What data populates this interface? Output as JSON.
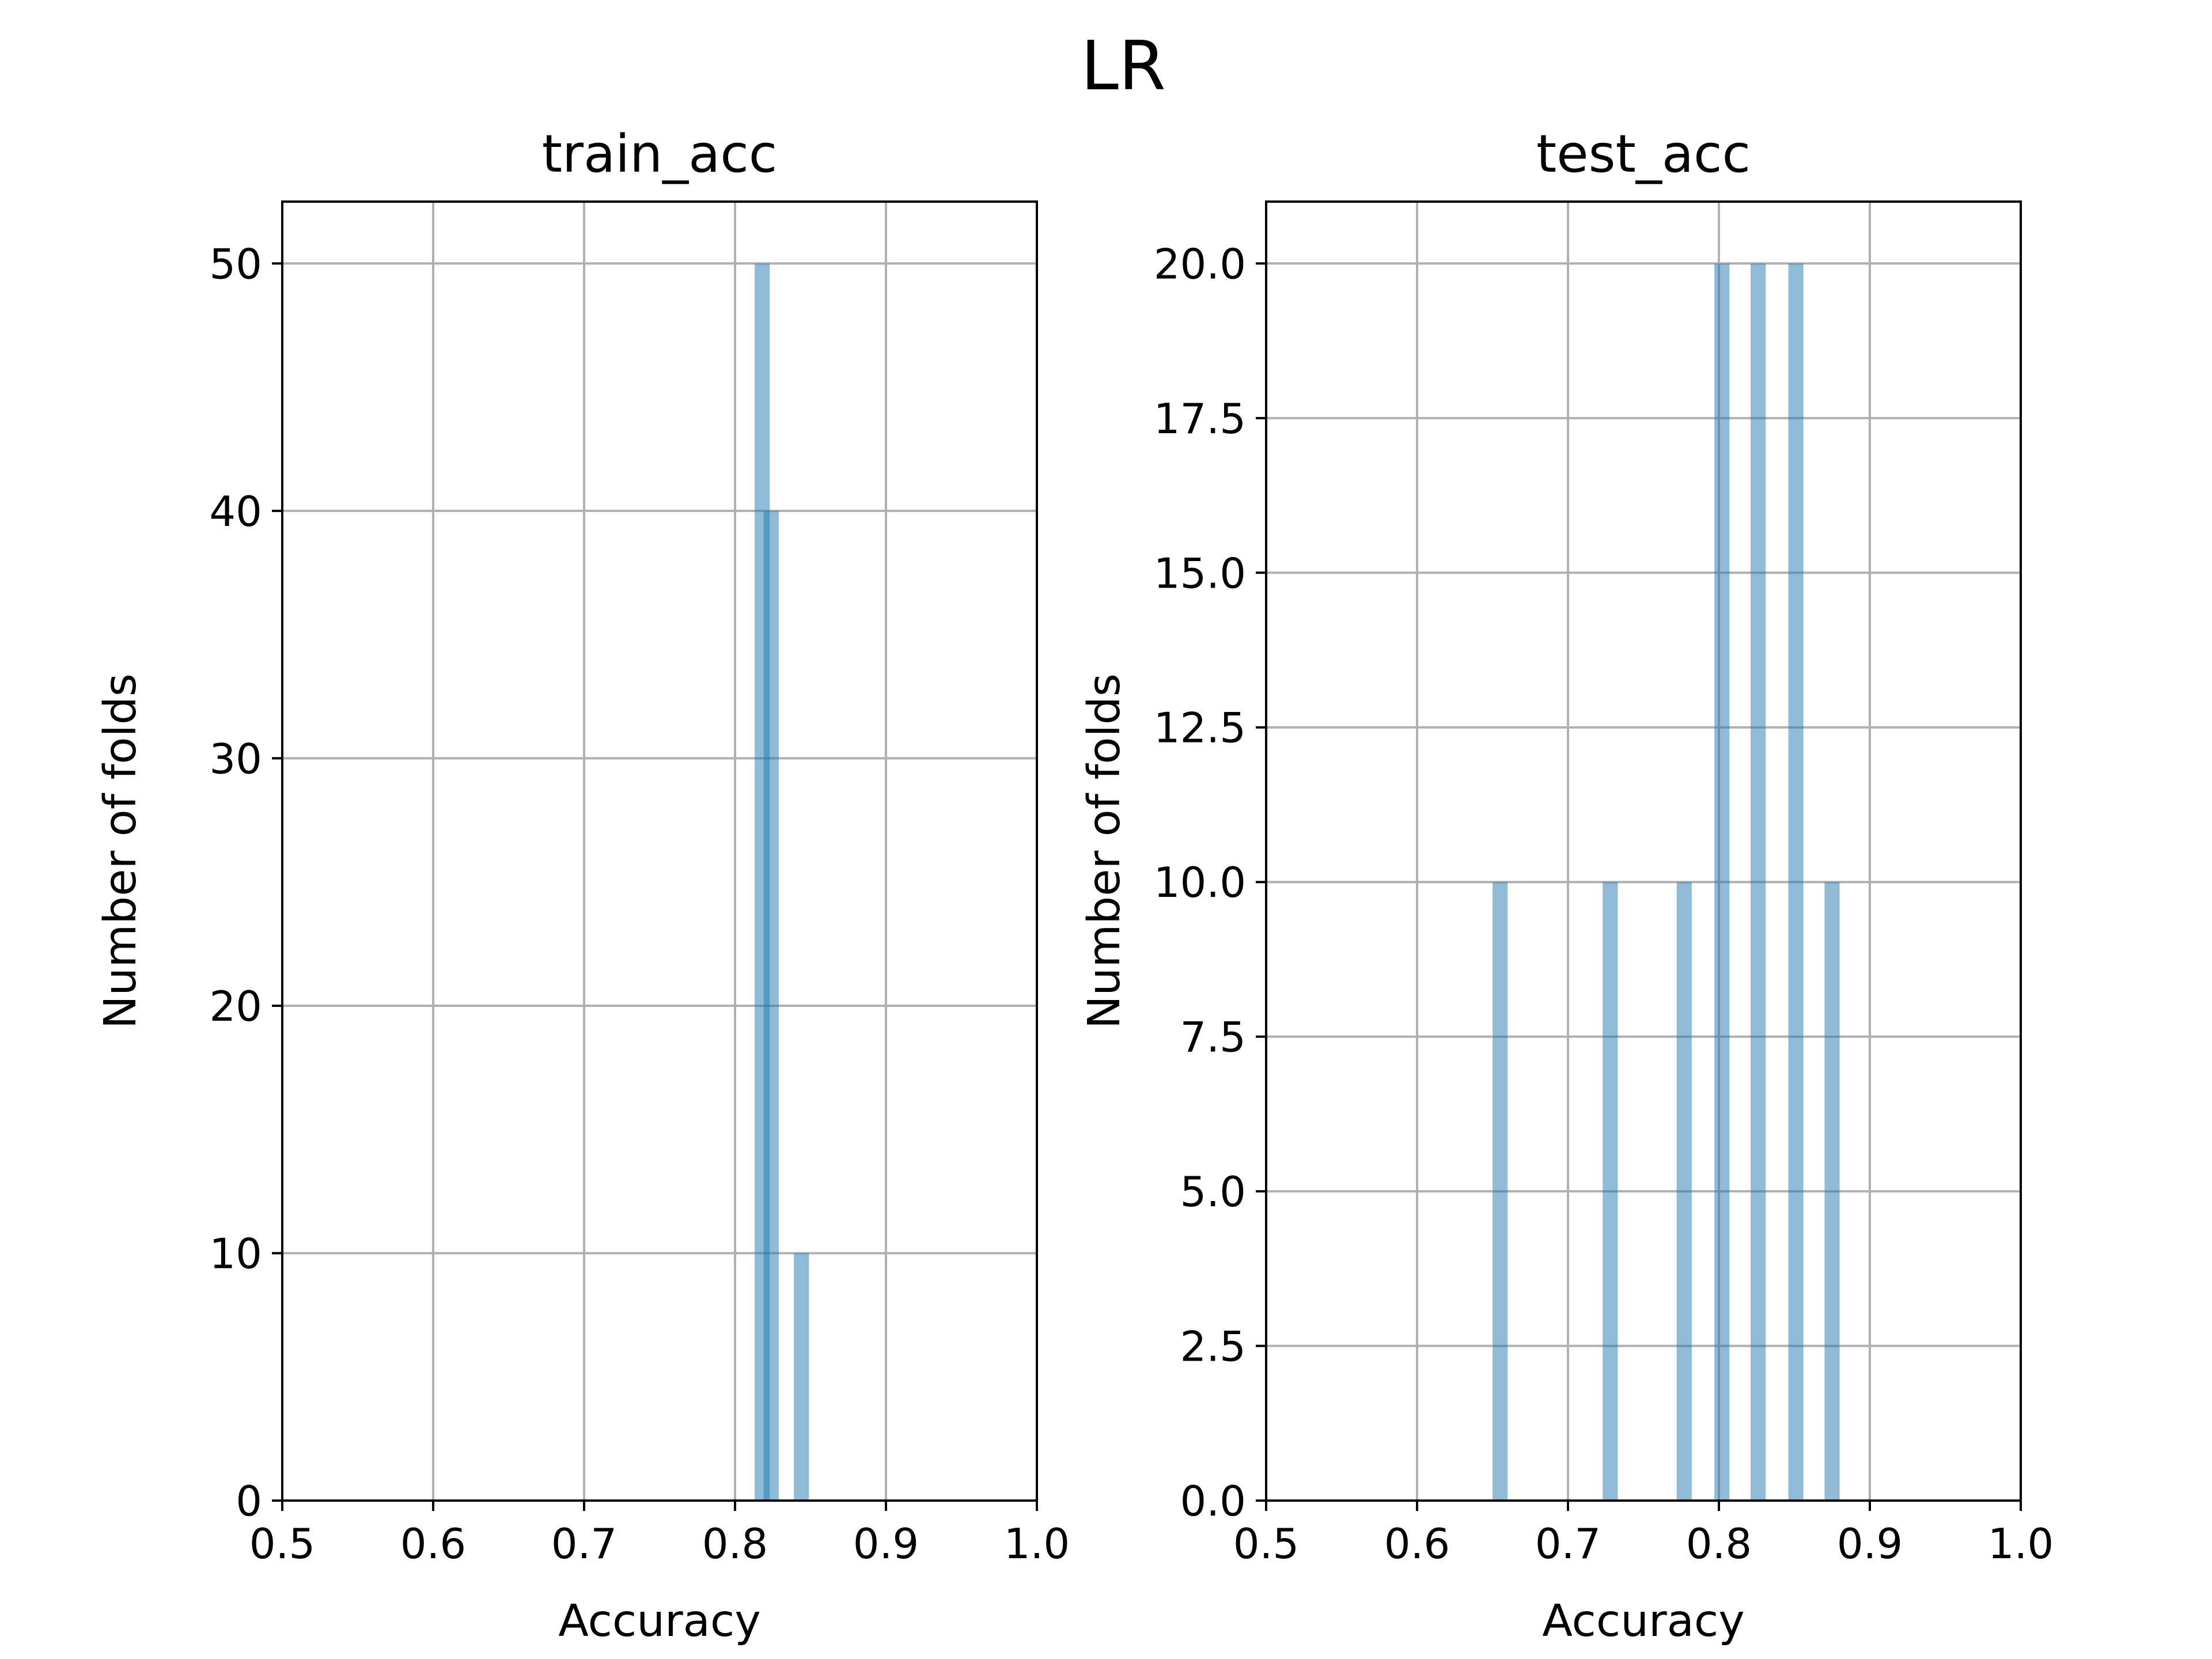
{
  "figure": {
    "title": "LR"
  },
  "colors": {
    "bar": "#1f77b4",
    "bar_alpha": 0.5,
    "grid": "#b0b0b0",
    "axes": "#000000"
  },
  "chart_data": [
    {
      "type": "bar",
      "title": "train_acc",
      "xlabel": "Accuracy",
      "ylabel": "Number of folds",
      "xlim": [
        0.5,
        1.0
      ],
      "ylim": [
        0,
        52.5
      ],
      "xticks": [
        "0.5",
        "0.6",
        "0.7",
        "0.8",
        "0.9",
        "1.0"
      ],
      "yticks": [
        "0",
        "10",
        "20",
        "30",
        "40",
        "50"
      ],
      "grid": true,
      "bin_width": 0.01,
      "series": [
        {
          "x": [
            0.818,
            0.824,
            0.844
          ],
          "values": [
            50,
            40,
            10
          ]
        }
      ]
    },
    {
      "type": "bar",
      "title": "test_acc",
      "xlabel": "Accuracy",
      "ylabel": "Number of folds",
      "xlim": [
        0.5,
        1.0
      ],
      "ylim": [
        0,
        21
      ],
      "xticks": [
        "0.5",
        "0.6",
        "0.7",
        "0.8",
        "0.9",
        "1.0"
      ],
      "yticks": [
        "0.0",
        "2.5",
        "5.0",
        "7.5",
        "10.0",
        "12.5",
        "15.0",
        "17.5",
        "20.0"
      ],
      "grid": true,
      "bin_width": 0.01,
      "series": [
        {
          "x": [
            0.655,
            0.728,
            0.777,
            0.802,
            0.826,
            0.851,
            0.875
          ],
          "values": [
            10,
            10,
            10,
            20,
            20,
            20,
            10
          ]
        }
      ]
    }
  ]
}
